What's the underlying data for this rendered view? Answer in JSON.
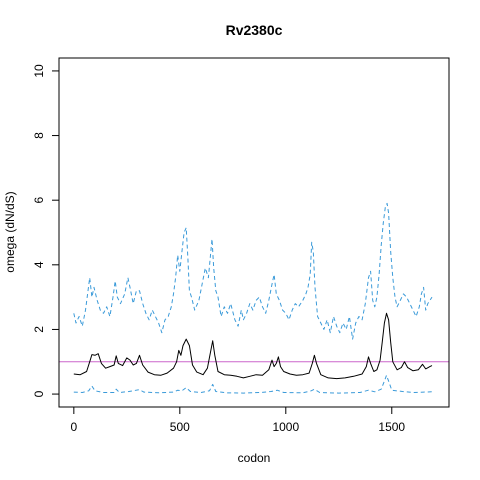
{
  "chart_data": {
    "type": "line",
    "title": "Rv2380c",
    "xlabel": "codon",
    "ylabel": "omega (dN/dS)",
    "xlim": [
      -70,
      1770
    ],
    "ylim": [
      -0.4,
      10.4
    ],
    "xticks": [
      0,
      500,
      1000,
      1500
    ],
    "yticks": [
      0,
      2,
      4,
      6,
      8,
      10
    ],
    "reference_line": {
      "y": 1,
      "color": "#cc66cc"
    },
    "grid": false,
    "series": [
      {
        "style": "solid",
        "color": "#000000",
        "points": [
          [
            0,
            0.62
          ],
          [
            30,
            0.6
          ],
          [
            60,
            0.7
          ],
          [
            75,
            1.0
          ],
          [
            85,
            1.22
          ],
          [
            100,
            1.2
          ],
          [
            115,
            1.25
          ],
          [
            130,
            0.95
          ],
          [
            150,
            0.8
          ],
          [
            170,
            0.85
          ],
          [
            190,
            0.9
          ],
          [
            200,
            1.18
          ],
          [
            210,
            0.95
          ],
          [
            230,
            0.88
          ],
          [
            250,
            1.12
          ],
          [
            265,
            1.05
          ],
          [
            280,
            0.9
          ],
          [
            295,
            0.95
          ],
          [
            310,
            1.2
          ],
          [
            325,
            0.9
          ],
          [
            350,
            0.68
          ],
          [
            380,
            0.6
          ],
          [
            410,
            0.58
          ],
          [
            440,
            0.65
          ],
          [
            470,
            0.8
          ],
          [
            485,
            1.0
          ],
          [
            495,
            1.35
          ],
          [
            505,
            1.2
          ],
          [
            515,
            1.5
          ],
          [
            530,
            1.7
          ],
          [
            545,
            1.5
          ],
          [
            560,
            0.9
          ],
          [
            580,
            0.68
          ],
          [
            610,
            0.6
          ],
          [
            630,
            0.8
          ],
          [
            645,
            1.3
          ],
          [
            655,
            1.65
          ],
          [
            665,
            1.2
          ],
          [
            680,
            0.7
          ],
          [
            710,
            0.6
          ],
          [
            740,
            0.58
          ],
          [
            770,
            0.55
          ],
          [
            800,
            0.5
          ],
          [
            830,
            0.55
          ],
          [
            860,
            0.6
          ],
          [
            890,
            0.58
          ],
          [
            920,
            0.75
          ],
          [
            935,
            1.05
          ],
          [
            945,
            0.85
          ],
          [
            955,
            0.95
          ],
          [
            965,
            1.15
          ],
          [
            975,
            0.85
          ],
          [
            990,
            0.7
          ],
          [
            1020,
            0.62
          ],
          [
            1050,
            0.58
          ],
          [
            1080,
            0.6
          ],
          [
            1110,
            0.65
          ],
          [
            1125,
            0.95
          ],
          [
            1135,
            1.2
          ],
          [
            1145,
            0.95
          ],
          [
            1165,
            0.6
          ],
          [
            1200,
            0.5
          ],
          [
            1240,
            0.48
          ],
          [
            1280,
            0.5
          ],
          [
            1320,
            0.55
          ],
          [
            1360,
            0.62
          ],
          [
            1380,
            0.85
          ],
          [
            1390,
            1.15
          ],
          [
            1400,
            0.95
          ],
          [
            1415,
            0.7
          ],
          [
            1430,
            0.75
          ],
          [
            1445,
            1.05
          ],
          [
            1455,
            1.6
          ],
          [
            1465,
            2.2
          ],
          [
            1475,
            2.5
          ],
          [
            1485,
            2.3
          ],
          [
            1495,
            1.6
          ],
          [
            1505,
            1.0
          ],
          [
            1525,
            0.75
          ],
          [
            1545,
            0.82
          ],
          [
            1560,
            1.0
          ],
          [
            1575,
            0.82
          ],
          [
            1600,
            0.72
          ],
          [
            1625,
            0.75
          ],
          [
            1645,
            0.92
          ],
          [
            1660,
            0.78
          ],
          [
            1680,
            0.85
          ],
          [
            1690,
            0.88
          ]
        ]
      },
      {
        "style": "dashed",
        "color": "#3a9ad9",
        "points": [
          [
            0,
            2.5
          ],
          [
            10,
            2.2
          ],
          [
            25,
            2.4
          ],
          [
            40,
            2.1
          ],
          [
            55,
            2.6
          ],
          [
            65,
            3.1
          ],
          [
            75,
            3.6
          ],
          [
            85,
            3.0
          ],
          [
            95,
            3.3
          ],
          [
            110,
            2.9
          ],
          [
            125,
            2.6
          ],
          [
            140,
            2.5
          ],
          [
            155,
            2.7
          ],
          [
            170,
            2.4
          ],
          [
            185,
            3.0
          ],
          [
            195,
            3.5
          ],
          [
            205,
            3.0
          ],
          [
            220,
            2.8
          ],
          [
            240,
            3.1
          ],
          [
            255,
            3.6
          ],
          [
            265,
            3.3
          ],
          [
            280,
            2.8
          ],
          [
            295,
            3.2
          ],
          [
            310,
            3.2
          ],
          [
            325,
            2.8
          ],
          [
            340,
            2.5
          ],
          [
            355,
            2.3
          ],
          [
            370,
            2.6
          ],
          [
            385,
            2.4
          ],
          [
            400,
            2.2
          ],
          [
            415,
            1.9
          ],
          [
            430,
            2.3
          ],
          [
            445,
            2.4
          ],
          [
            460,
            2.7
          ],
          [
            470,
            3.1
          ],
          [
            480,
            3.6
          ],
          [
            490,
            4.3
          ],
          [
            500,
            3.8
          ],
          [
            510,
            4.4
          ],
          [
            520,
            5.0
          ],
          [
            530,
            5.15
          ],
          [
            538,
            4.2
          ],
          [
            545,
            3.2
          ],
          [
            555,
            3.0
          ],
          [
            570,
            2.6
          ],
          [
            590,
            2.9
          ],
          [
            605,
            3.4
          ],
          [
            620,
            3.9
          ],
          [
            635,
            3.6
          ],
          [
            645,
            4.3
          ],
          [
            652,
            4.8
          ],
          [
            660,
            3.9
          ],
          [
            670,
            3.2
          ],
          [
            680,
            3.0
          ],
          [
            695,
            2.4
          ],
          [
            710,
            2.7
          ],
          [
            725,
            2.5
          ],
          [
            740,
            2.8
          ],
          [
            760,
            2.3
          ],
          [
            775,
            2.1
          ],
          [
            790,
            2.6
          ],
          [
            800,
            2.3
          ],
          [
            815,
            2.5
          ],
          [
            830,
            2.8
          ],
          [
            845,
            2.6
          ],
          [
            860,
            2.9
          ],
          [
            875,
            3.0
          ],
          [
            890,
            2.7
          ],
          [
            905,
            2.5
          ],
          [
            920,
            2.9
          ],
          [
            935,
            3.4
          ],
          [
            945,
            3.7
          ],
          [
            955,
            3.1
          ],
          [
            970,
            2.9
          ],
          [
            985,
            2.6
          ],
          [
            1000,
            2.5
          ],
          [
            1015,
            2.3
          ],
          [
            1030,
            2.6
          ],
          [
            1045,
            2.8
          ],
          [
            1060,
            2.7
          ],
          [
            1080,
            2.9
          ],
          [
            1095,
            3.1
          ],
          [
            1105,
            3.3
          ],
          [
            1115,
            3.7
          ],
          [
            1122,
            4.7
          ],
          [
            1130,
            4.4
          ],
          [
            1138,
            3.3
          ],
          [
            1150,
            2.4
          ],
          [
            1165,
            2.2
          ],
          [
            1180,
            2.0
          ],
          [
            1195,
            2.3
          ],
          [
            1210,
            1.9
          ],
          [
            1225,
            2.4
          ],
          [
            1240,
            2.1
          ],
          [
            1255,
            1.9
          ],
          [
            1270,
            2.2
          ],
          [
            1285,
            2.0
          ],
          [
            1300,
            2.4
          ],
          [
            1315,
            1.7
          ],
          [
            1330,
            2.2
          ],
          [
            1345,
            2.4
          ],
          [
            1360,
            2.3
          ],
          [
            1375,
            2.8
          ],
          [
            1390,
            3.6
          ],
          [
            1400,
            3.8
          ],
          [
            1410,
            2.9
          ],
          [
            1420,
            2.7
          ],
          [
            1430,
            3.0
          ],
          [
            1440,
            3.7
          ],
          [
            1450,
            4.6
          ],
          [
            1460,
            5.3
          ],
          [
            1470,
            5.8
          ],
          [
            1478,
            5.9
          ],
          [
            1485,
            5.6
          ],
          [
            1495,
            4.4
          ],
          [
            1505,
            3.6
          ],
          [
            1515,
            3.0
          ],
          [
            1525,
            2.7
          ],
          [
            1540,
            2.9
          ],
          [
            1555,
            3.1
          ],
          [
            1570,
            3.0
          ],
          [
            1585,
            2.8
          ],
          [
            1600,
            2.6
          ],
          [
            1615,
            2.4
          ],
          [
            1630,
            2.7
          ],
          [
            1640,
            3.1
          ],
          [
            1650,
            3.3
          ],
          [
            1660,
            2.6
          ],
          [
            1670,
            2.8
          ],
          [
            1680,
            2.9
          ],
          [
            1690,
            3.0
          ]
        ]
      },
      {
        "style": "dashed",
        "color": "#3a9ad9",
        "points": [
          [
            0,
            0.06
          ],
          [
            40,
            0.05
          ],
          [
            70,
            0.1
          ],
          [
            85,
            0.25
          ],
          [
            100,
            0.1
          ],
          [
            140,
            0.05
          ],
          [
            190,
            0.05
          ],
          [
            200,
            0.15
          ],
          [
            215,
            0.05
          ],
          [
            260,
            0.08
          ],
          [
            310,
            0.14
          ],
          [
            330,
            0.06
          ],
          [
            400,
            0.04
          ],
          [
            470,
            0.06
          ],
          [
            490,
            0.12
          ],
          [
            510,
            0.1
          ],
          [
            530,
            0.2
          ],
          [
            550,
            0.08
          ],
          [
            600,
            0.05
          ],
          [
            640,
            0.1
          ],
          [
            655,
            0.3
          ],
          [
            670,
            0.08
          ],
          [
            720,
            0.04
          ],
          [
            800,
            0.03
          ],
          [
            880,
            0.05
          ],
          [
            930,
            0.08
          ],
          [
            960,
            0.12
          ],
          [
            990,
            0.05
          ],
          [
            1080,
            0.04
          ],
          [
            1120,
            0.1
          ],
          [
            1135,
            0.15
          ],
          [
            1160,
            0.05
          ],
          [
            1250,
            0.03
          ],
          [
            1350,
            0.05
          ],
          [
            1390,
            0.12
          ],
          [
            1420,
            0.07
          ],
          [
            1450,
            0.15
          ],
          [
            1465,
            0.4
          ],
          [
            1475,
            0.58
          ],
          [
            1485,
            0.4
          ],
          [
            1500,
            0.12
          ],
          [
            1550,
            0.08
          ],
          [
            1600,
            0.05
          ],
          [
            1650,
            0.06
          ],
          [
            1690,
            0.07
          ]
        ]
      }
    ]
  }
}
